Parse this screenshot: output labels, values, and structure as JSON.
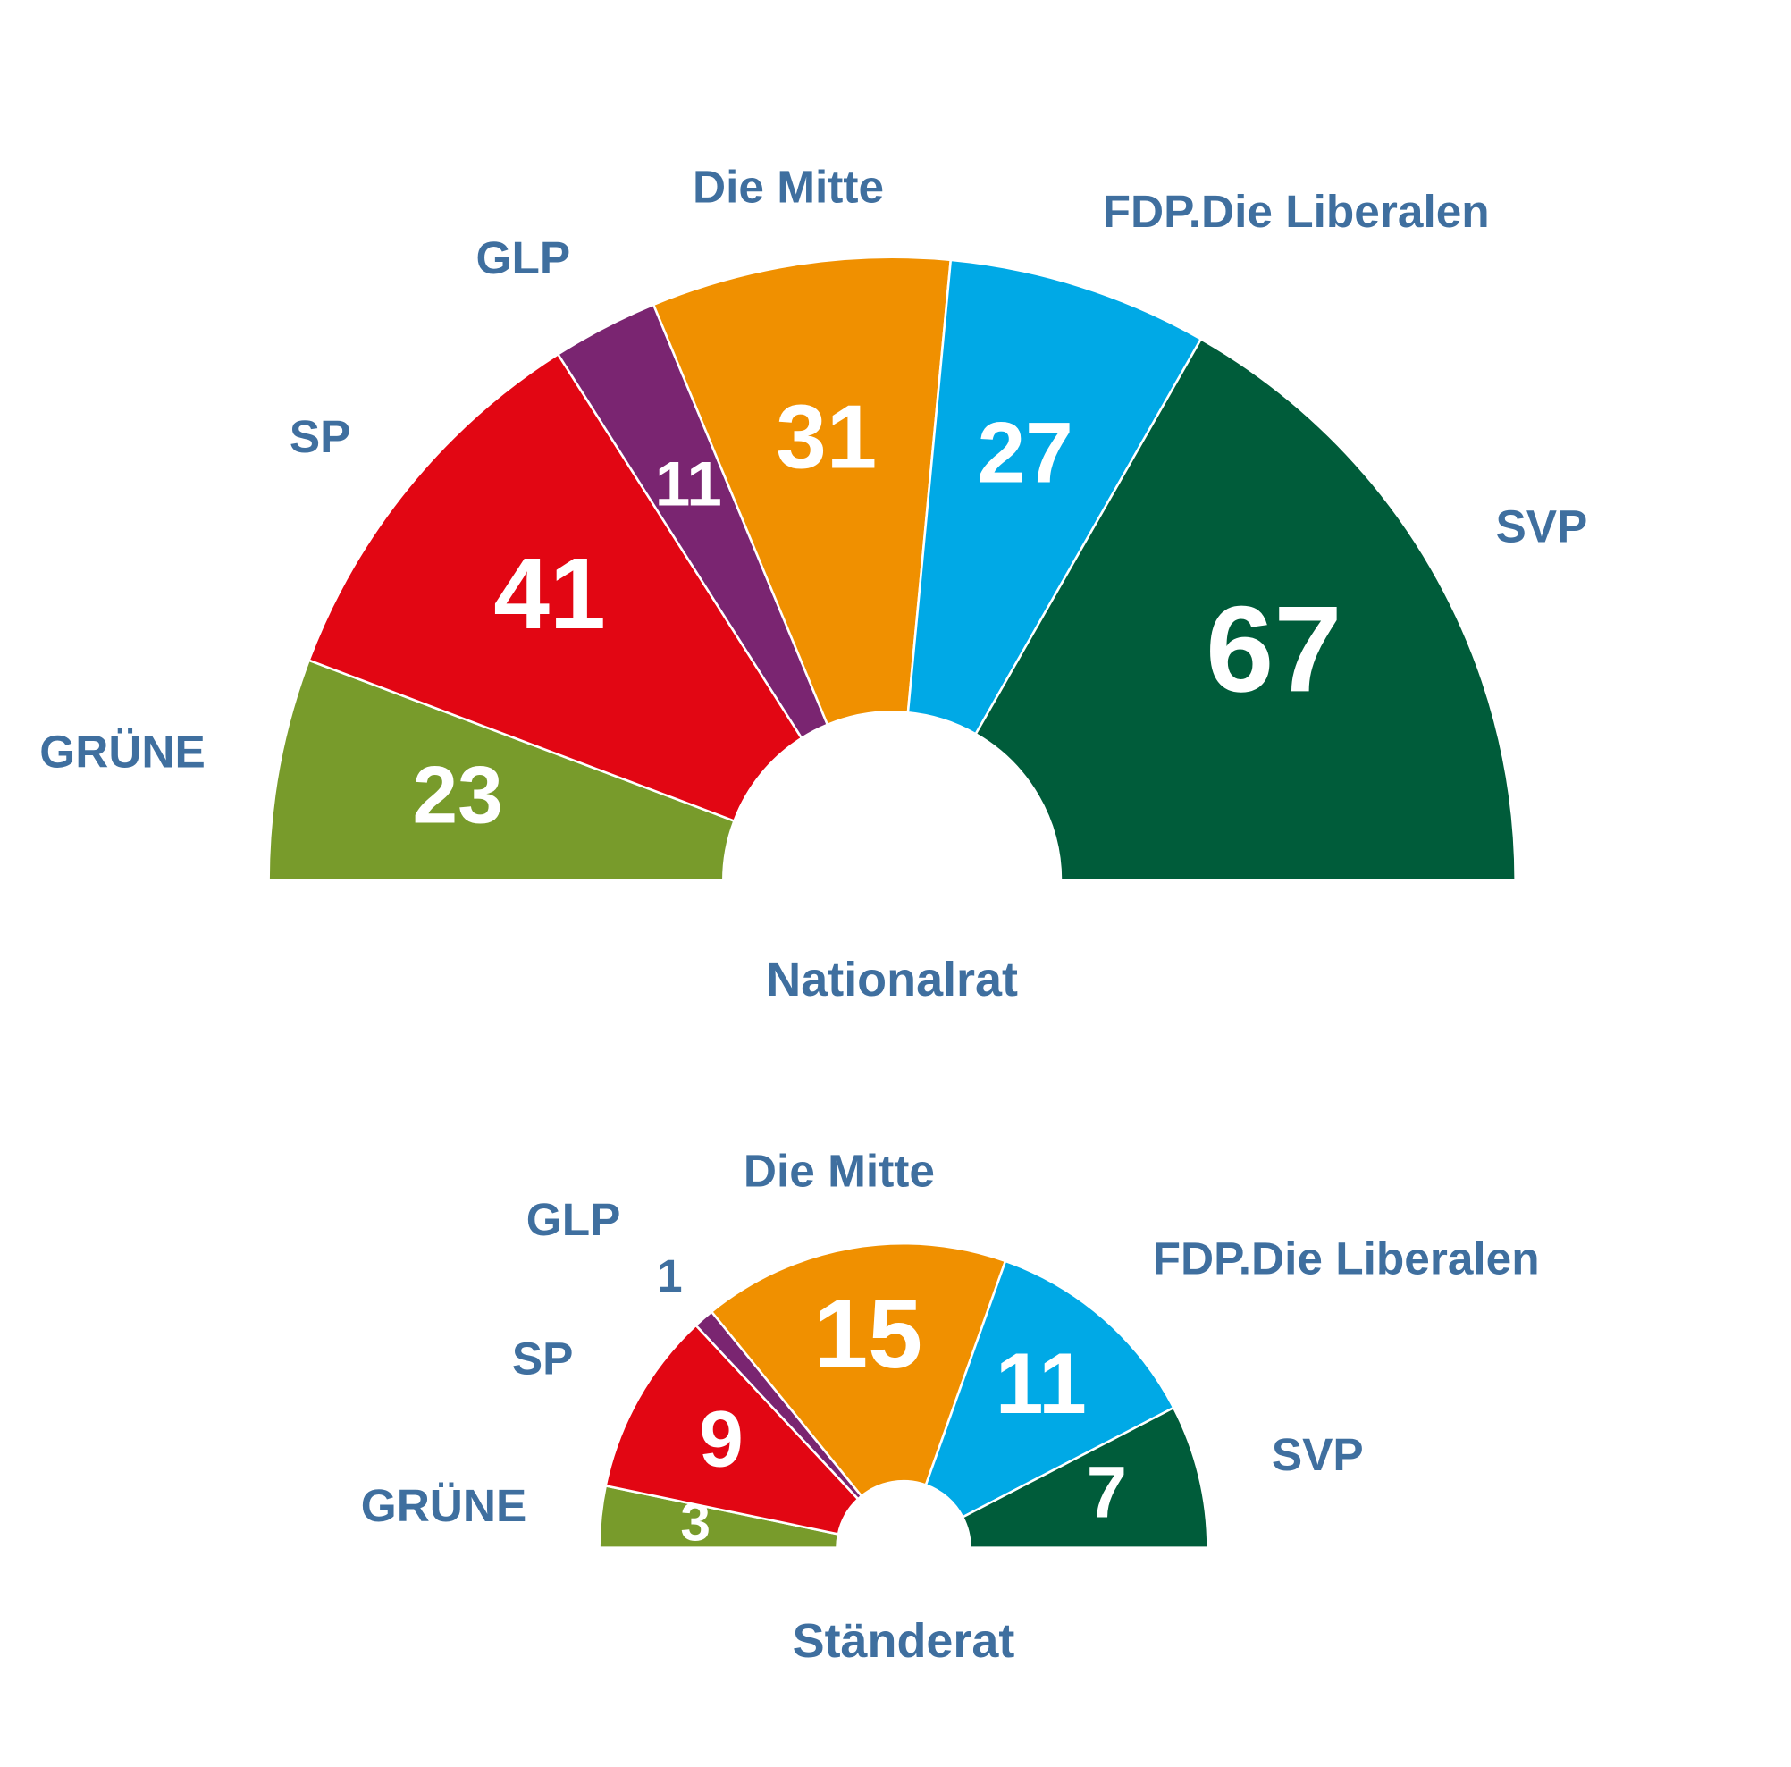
{
  "chart_data": [
    {
      "type": "semicircle",
      "title": "Nationalrat",
      "categories": [
        "GRÜNE",
        "SP",
        "GLP",
        "Die Mitte",
        "FDP.Die Liberalen",
        "SVP"
      ],
      "values": [
        23,
        41,
        11,
        31,
        27,
        67
      ],
      "colors": [
        "#789b2b",
        "#e20613",
        "#7a2571",
        "#f09000",
        "#00a9e6",
        "#005c3a"
      ]
    },
    {
      "type": "semicircle",
      "title": "Ständerat",
      "categories": [
        "GRÜNE",
        "SP",
        "GLP",
        "Die Mitte",
        "FDP.Die Liberalen",
        "SVP"
      ],
      "values": [
        3,
        9,
        1,
        15,
        11,
        7
      ],
      "colors": [
        "#789b2b",
        "#e20613",
        "#7a2571",
        "#f09000",
        "#00a9e6",
        "#005c3a"
      ]
    }
  ]
}
